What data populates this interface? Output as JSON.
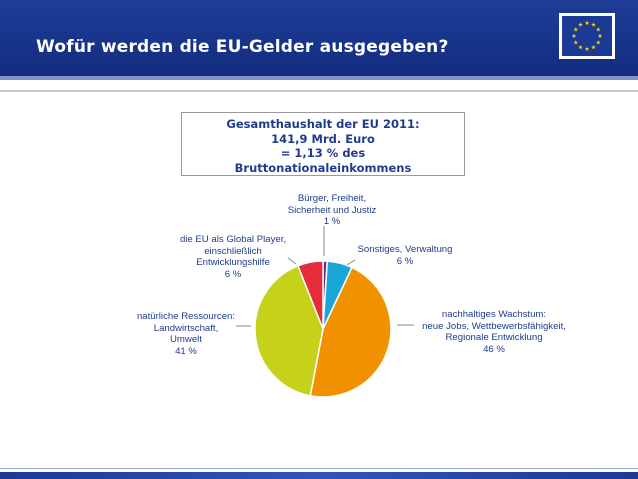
{
  "header": {
    "title": "Wofür werden die EU-Gelder ausgegeben?"
  },
  "colors": {
    "header_bg": "#17338a",
    "text": "#1f3c8c",
    "flag_stars": "#f7d117",
    "flag_bg": "#1a3a94"
  },
  "icons": {
    "flag": "eu-flag-icon"
  },
  "info_box": {
    "lines": [
      "Gesamthaushalt der EU 2011:",
      "141,9 Mrd. Euro",
      "= 1,13 % des",
      "Bruttonationaleinkommens"
    ]
  },
  "chart_data": {
    "type": "pie",
    "title": "",
    "slices": [
      {
        "label_lines": [
          "Bürger, Freiheit,",
          "Sicherheit und Justiz",
          "1 %"
        ],
        "value": 1,
        "color": "#6a2e8e"
      },
      {
        "label_lines": [
          "Sonstiges, Verwaltung",
          "6 %"
        ],
        "value": 6,
        "color": "#1aa7d8"
      },
      {
        "label_lines": [
          "nachhaltiges Wachstum:",
          "neue Jobs, Wettbewerbsfähigkeit,",
          "Regionale Entwicklung",
          "46 %"
        ],
        "value": 46,
        "color": "#f29100"
      },
      {
        "label_lines": [
          "natürliche Ressourcen:",
          "Landwirtschaft,",
          "Umwelt",
          "41 %"
        ],
        "value": 41,
        "color": "#c6d11a"
      },
      {
        "label_lines": [
          "die EU als Global Player,",
          "einschließlich",
          "Entwicklungshilfe",
          "6 %"
        ],
        "value": 6,
        "color": "#e52d3a"
      }
    ]
  }
}
